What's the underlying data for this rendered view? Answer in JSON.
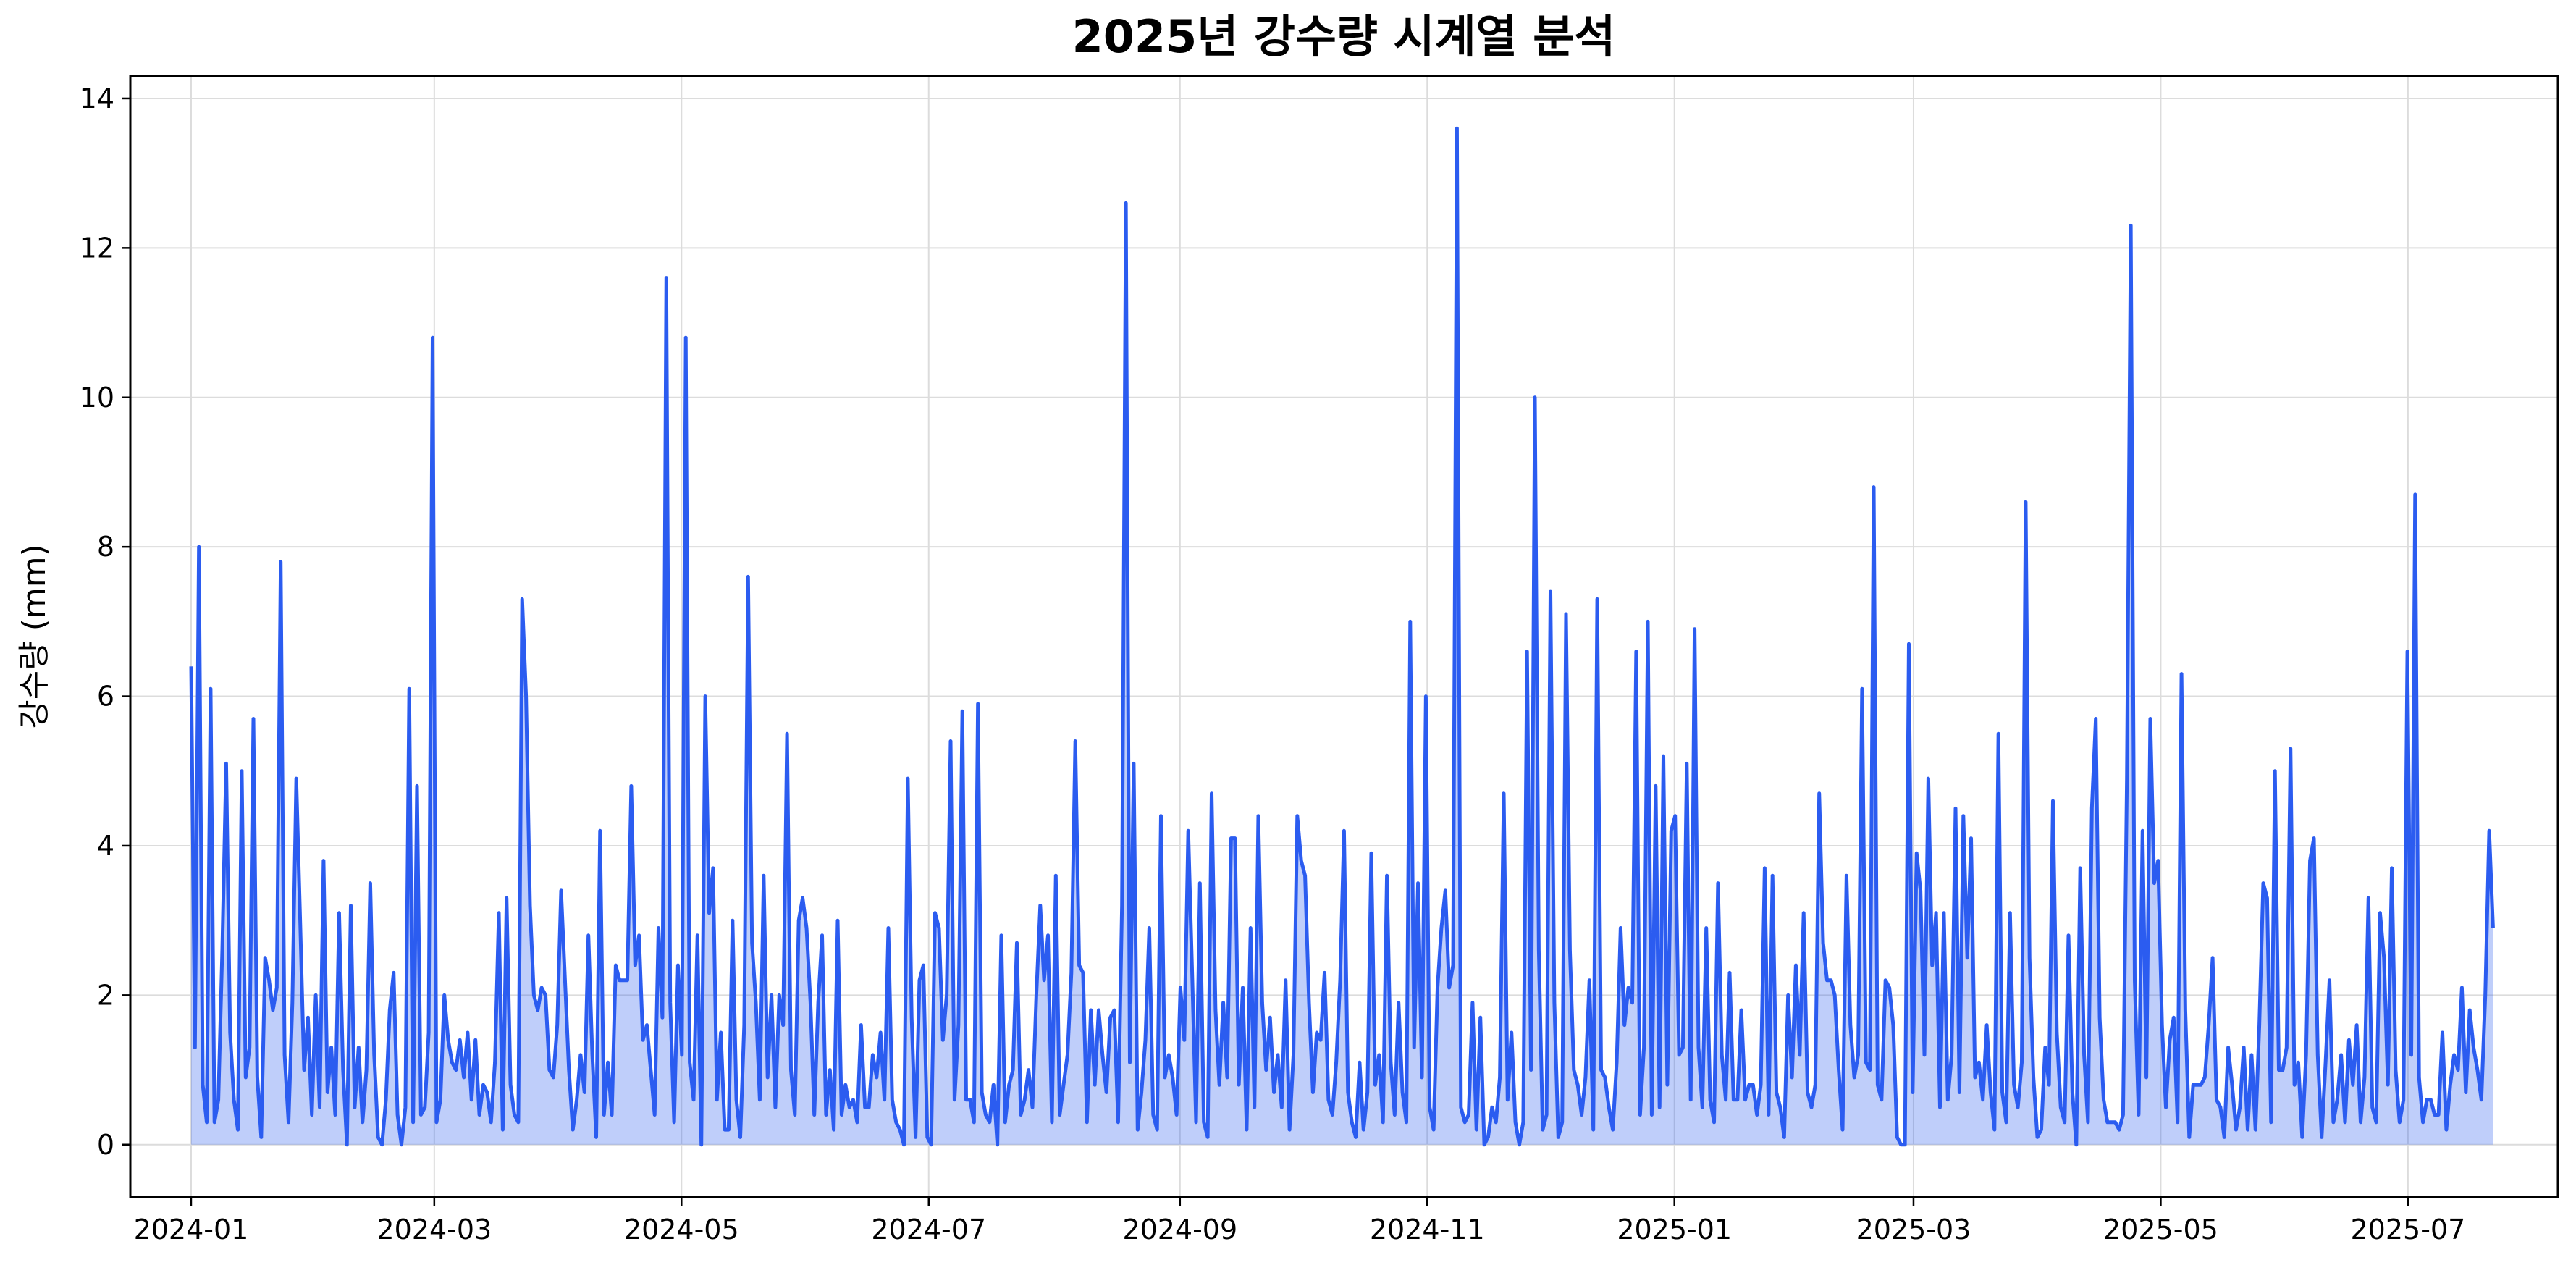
{
  "chart_data": {
    "type": "area",
    "title": "2025년 강수량 시계열 분석",
    "xlabel": "",
    "ylabel": "강수량 (mm)",
    "x_start": "2024-01-01",
    "x_end": "2025-07-22",
    "xlim": [
      "2023-12-17",
      "2025-08-07"
    ],
    "ylim": [
      -0.7,
      14.3
    ],
    "y_ticks": [
      0,
      2,
      4,
      6,
      8,
      10,
      12,
      14
    ],
    "x_ticks": [
      "2024-01",
      "2024-03",
      "2024-05",
      "2024-07",
      "2024-09",
      "2024-11",
      "2025-01",
      "2025-03",
      "2025-05",
      "2025-07"
    ],
    "grid": true,
    "legend": "none",
    "series": [
      {
        "color": "#2b5cf0",
        "values": [
          6.4,
          1.3,
          8.0,
          0.8,
          0.3,
          6.1,
          0.3,
          0.6,
          2.6,
          5.1,
          1.5,
          0.6,
          0.2,
          5.0,
          0.9,
          1.3,
          5.7,
          0.9,
          0.1,
          2.5,
          2.2,
          1.8,
          2.1,
          7.8,
          1.2,
          0.3,
          1.9,
          4.9,
          3.0,
          1.0,
          1.7,
          0.4,
          2.0,
          0.5,
          3.8,
          0.7,
          1.3,
          0.4,
          3.1,
          1.0,
          0.0,
          3.2,
          0.5,
          1.3,
          0.3,
          1.0,
          3.5,
          1.2,
          0.1,
          0.0,
          0.6,
          1.8,
          2.3,
          0.4,
          0.0,
          0.5,
          6.1,
          0.3,
          4.8,
          0.4,
          0.5,
          1.5,
          10.8,
          0.3,
          0.6,
          2.0,
          1.4,
          1.1,
          1.0,
          1.4,
          0.9,
          1.5,
          0.6,
          1.4,
          0.4,
          0.8,
          0.7,
          0.3,
          1.1,
          3.1,
          0.2,
          3.3,
          0.8,
          0.4,
          0.3,
          7.3,
          6.0,
          3.2,
          2.0,
          1.8,
          2.1,
          2.0,
          1.0,
          0.9,
          1.6,
          3.4,
          2.2,
          1.0,
          0.2,
          0.6,
          1.2,
          0.7,
          2.8,
          1.2,
          0.1,
          4.2,
          0.4,
          1.1,
          0.4,
          2.4,
          2.2,
          2.2,
          2.2,
          4.8,
          2.4,
          2.8,
          1.4,
          1.6,
          1.0,
          0.4,
          2.9,
          1.7,
          11.6,
          1.9,
          0.3,
          2.4,
          1.2,
          10.8,
          1.1,
          0.6,
          2.8,
          0.0,
          6.0,
          3.1,
          3.7,
          0.6,
          1.5,
          0.2,
          0.2,
          3.0,
          0.6,
          0.1,
          1.6,
          7.6,
          2.7,
          1.9,
          0.6,
          3.6,
          0.9,
          2.0,
          0.5,
          2.0,
          1.6,
          5.5,
          1.0,
          0.4,
          3.0,
          3.3,
          2.9,
          1.9,
          0.4,
          1.9,
          2.8,
          0.4,
          1.0,
          0.2,
          3.0,
          0.4,
          0.8,
          0.5,
          0.6,
          0.3,
          1.6,
          0.5,
          0.5,
          1.2,
          0.9,
          1.5,
          0.6,
          2.9,
          0.6,
          0.3,
          0.2,
          0.0,
          4.9,
          1.7,
          0.1,
          2.2,
          2.4,
          0.1,
          0.0,
          3.1,
          2.9,
          1.4,
          2.0,
          5.4,
          0.6,
          1.6,
          5.8,
          0.6,
          0.6,
          0.3,
          5.9,
          0.7,
          0.4,
          0.3,
          0.8,
          0.0,
          2.8,
          0.3,
          0.8,
          1.0,
          2.7,
          0.4,
          0.6,
          1.0,
          0.5,
          2.0,
          3.2,
          2.2,
          2.8,
          0.3,
          3.6,
          0.4,
          0.8,
          1.2,
          2.3,
          5.4,
          2.4,
          2.3,
          0.3,
          1.8,
          0.8,
          1.8,
          1.2,
          0.7,
          1.7,
          1.8,
          0.3,
          3.2,
          12.6,
          1.1,
          5.1,
          0.2,
          0.7,
          1.4,
          2.9,
          0.4,
          0.2,
          4.4,
          0.9,
          1.2,
          0.9,
          0.4,
          2.1,
          1.4,
          4.2,
          2.3,
          0.3,
          3.5,
          0.3,
          0.1,
          4.7,
          1.8,
          0.8,
          1.9,
          0.9,
          4.1,
          4.1,
          0.8,
          2.1,
          0.2,
          2.9,
          0.5,
          4.4,
          1.9,
          1.0,
          1.7,
          0.7,
          1.2,
          0.5,
          2.2,
          0.2,
          1.2,
          4.4,
          3.8,
          3.6,
          1.9,
          0.7,
          1.5,
          1.4,
          2.3,
          0.6,
          0.4,
          1.1,
          2.2,
          4.2,
          0.7,
          0.3,
          0.1,
          1.1,
          0.2,
          0.7,
          3.9,
          0.8,
          1.2,
          0.3,
          3.6,
          1.1,
          0.4,
          1.9,
          0.7,
          0.3,
          7.0,
          1.3,
          3.5,
          0.9,
          6.0,
          0.5,
          0.2,
          2.1,
          2.9,
          3.4,
          2.1,
          2.4,
          13.6,
          0.5,
          0.3,
          0.4,
          1.9,
          0.2,
          1.7,
          0.0,
          0.1,
          0.5,
          0.3,
          0.9,
          4.7,
          0.6,
          1.5,
          0.3,
          0.0,
          0.3,
          6.6,
          1.0,
          10.0,
          2.6,
          0.2,
          0.4,
          7.4,
          1.9,
          0.1,
          0.3,
          7.1,
          2.6,
          1.0,
          0.8,
          0.4,
          0.9,
          2.2,
          0.2,
          7.3,
          1.0,
          0.9,
          0.5,
          0.2,
          1.1,
          2.9,
          1.6,
          2.1,
          1.9,
          6.6,
          0.4,
          1.3,
          7.0,
          0.4,
          4.8,
          0.5,
          5.2,
          0.8,
          4.2,
          4.4,
          1.2,
          1.3,
          5.1,
          0.6,
          6.9,
          1.3,
          0.5,
          2.9,
          0.6,
          0.3,
          3.5,
          1.2,
          0.6,
          2.3,
          0.6,
          0.6,
          1.8,
          0.6,
          0.8,
          0.8,
          0.4,
          0.8,
          3.7,
          0.4,
          3.6,
          0.7,
          0.5,
          0.1,
          2.0,
          0.9,
          2.4,
          1.2,
          3.1,
          0.7,
          0.5,
          0.8,
          4.7,
          2.7,
          2.2,
          2.2,
          2.0,
          1.0,
          0.2,
          3.6,
          1.6,
          0.9,
          1.2,
          6.1,
          1.1,
          1.0,
          8.8,
          0.8,
          0.6,
          2.2,
          2.1,
          1.6,
          0.1,
          0.0,
          0.0,
          6.7,
          0.7,
          3.9,
          3.4,
          1.2,
          4.9,
          2.4,
          3.1,
          0.5,
          3.1,
          0.6,
          1.2,
          4.5,
          0.7,
          4.4,
          2.5,
          4.1,
          0.9,
          1.1,
          0.6,
          1.6,
          0.7,
          0.2,
          5.5,
          0.7,
          0.3,
          3.1,
          0.8,
          0.5,
          1.1,
          8.6,
          2.5,
          0.9,
          0.1,
          0.2,
          1.3,
          0.8,
          4.6,
          1.5,
          0.5,
          0.3,
          2.8,
          0.7,
          0.0,
          3.7,
          1.2,
          0.3,
          4.5,
          5.7,
          1.7,
          0.6,
          0.3,
          0.3,
          0.3,
          0.2,
          0.4,
          4.9,
          12.3,
          2.2,
          0.4,
          4.2,
          0.9,
          5.7,
          3.5,
          3.8,
          1.6,
          0.5,
          1.4,
          1.7,
          0.3,
          6.3,
          1.8,
          0.1,
          0.8,
          0.8,
          0.8,
          0.9,
          1.6,
          2.5,
          0.6,
          0.5,
          0.1,
          1.3,
          0.8,
          0.2,
          0.5,
          1.3,
          0.2,
          1.2,
          0.2,
          1.6,
          3.5,
          3.3,
          0.3,
          5.0,
          1.0,
          1.0,
          1.3,
          5.3,
          0.8,
          1.1,
          0.1,
          1.2,
          3.8,
          4.1,
          1.2,
          0.1,
          1.1,
          2.2,
          0.3,
          0.6,
          1.2,
          0.3,
          1.4,
          0.8,
          1.6,
          0.3,
          0.9,
          3.3,
          0.5,
          0.3,
          3.1,
          2.5,
          0.8,
          3.7,
          1.0,
          0.3,
          0.6,
          6.6,
          1.2,
          8.7,
          0.9,
          0.3,
          0.6,
          0.6,
          0.4,
          0.4,
          1.5,
          0.2,
          0.8,
          1.2,
          1.0,
          2.1,
          0.7,
          1.8,
          1.3,
          1.0,
          0.6,
          2.0,
          4.2,
          2.9
        ]
      }
    ]
  }
}
